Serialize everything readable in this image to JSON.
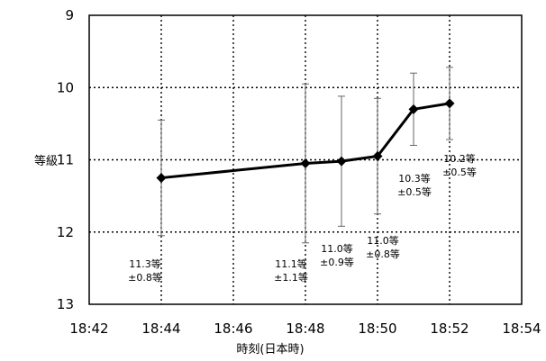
{
  "chart_data": {
    "type": "line",
    "xlabel": "時刻(日本時)",
    "ylabel": "等級",
    "x_ticks": [
      "18:42",
      "18:44",
      "18:46",
      "18:48",
      "18:50",
      "18:52",
      "18:54"
    ],
    "y_ticks": [
      "9",
      "10",
      "11",
      "12",
      "13"
    ],
    "xlim": [
      "18:42",
      "18:54"
    ],
    "ylim": [
      9,
      13
    ],
    "y_inverted": true,
    "grid": true,
    "series": [
      {
        "points": [
          {
            "x": "18:44",
            "y": 11.25,
            "err": 0.8
          },
          {
            "x": "18:48",
            "y": 11.05,
            "err": 1.1
          },
          {
            "x": "18:49",
            "y": 11.02,
            "err": 0.9
          },
          {
            "x": "18:50",
            "y": 10.95,
            "err": 0.8
          },
          {
            "x": "18:51",
            "y": 10.3,
            "err": 0.5
          },
          {
            "x": "18:52",
            "y": 10.22,
            "err": 0.5
          }
        ]
      }
    ],
    "annotations": [
      {
        "line1": "11.3等",
        "line2": "±0.8等"
      },
      {
        "line1": "11.1等",
        "line2": "±1.1等"
      },
      {
        "line1": "11.0等",
        "line2": "±0.9等"
      },
      {
        "line1": "11.0等",
        "line2": "±0.8等"
      },
      {
        "line1": "10.3等",
        "line2": "±0.5等"
      },
      {
        "line1": "10.2等",
        "line2": "±0.5等"
      }
    ]
  }
}
